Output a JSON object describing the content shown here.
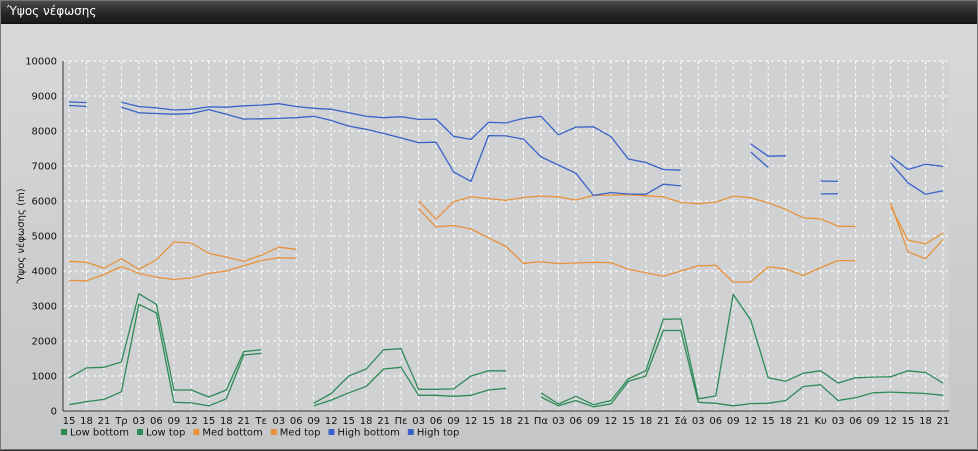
{
  "window": {
    "title": "Ύψος νέφωσης"
  },
  "chart_data": {
    "type": "line",
    "title": "",
    "ylabel": "Ύψος νέφωσης (m)",
    "xlabel": "",
    "ylim": [
      0,
      10000
    ],
    "yticks": [
      0,
      1000,
      2000,
      3000,
      4000,
      5000,
      6000,
      7000,
      8000,
      9000,
      10000
    ],
    "grid": true,
    "legend_position": "bottom-left",
    "categories": [
      "15",
      "18",
      "21",
      "Τρ",
      "03",
      "06",
      "09",
      "12",
      "15",
      "18",
      "21",
      "Τε",
      "03",
      "06",
      "09",
      "12",
      "15",
      "18",
      "21",
      "Πε",
      "03",
      "06",
      "09",
      "12",
      "15",
      "18",
      "21",
      "Πα",
      "03",
      "06",
      "09",
      "12",
      "15",
      "18",
      "21",
      "Σά",
      "03",
      "06",
      "09",
      "12",
      "15",
      "18",
      "21",
      "Κυ",
      "03",
      "06",
      "09",
      "12",
      "15",
      "18",
      "21"
    ],
    "series": [
      {
        "name": "Low bottom",
        "color": "#2e8b57",
        "values": [
          180,
          270,
          330,
          550,
          3050,
          2800,
          250,
          230,
          150,
          350,
          1600,
          1650,
          null,
          null,
          150,
          310,
          520,
          700,
          1200,
          1250,
          450,
          450,
          420,
          450,
          600,
          650,
          null,
          400,
          150,
          300,
          120,
          200,
          850,
          1000,
          2300,
          2300,
          250,
          220,
          150,
          210,
          220,
          300,
          700,
          750,
          300,
          380,
          520,
          540,
          520,
          500,
          450
        ]
      },
      {
        "name": "Low top",
        "color": "#2e8b57",
        "values": [
          950,
          1230,
          1250,
          1400,
          3350,
          3050,
          600,
          600,
          400,
          600,
          1700,
          1750,
          null,
          null,
          220,
          500,
          1000,
          1200,
          1750,
          1780,
          620,
          620,
          630,
          1000,
          1150,
          1150,
          null,
          520,
          200,
          420,
          180,
          300,
          920,
          1150,
          2620,
          2630,
          350,
          430,
          3330,
          2600,
          950,
          850,
          1080,
          1150,
          800,
          950,
          970,
          980,
          1150,
          1100,
          800
        ]
      },
      {
        "name": "Med bottom",
        "color": "#e8923a",
        "values": [
          3730,
          3720,
          3900,
          4130,
          3930,
          3820,
          3760,
          3800,
          3930,
          4000,
          4150,
          4300,
          4380,
          4360,
          null,
          null,
          null,
          null,
          null,
          null,
          5780,
          5260,
          5300,
          5200,
          4950,
          4700,
          4220,
          4270,
          4210,
          4230,
          4250,
          4240,
          4050,
          3950,
          3850,
          4000,
          4150,
          4160,
          3680,
          3690,
          4120,
          4060,
          3870,
          4100,
          4300,
          4290,
          null,
          5950,
          4550,
          4350,
          4900
        ]
      },
      {
        "name": "Med top",
        "color": "#e8923a",
        "values": [
          4280,
          4250,
          4080,
          4350,
          4050,
          4320,
          4830,
          4800,
          4500,
          4400,
          4280,
          4450,
          4680,
          4620,
          null,
          null,
          null,
          null,
          null,
          null,
          6000,
          5480,
          5980,
          6120,
          6070,
          6020,
          6100,
          6140,
          6120,
          6030,
          6160,
          6170,
          6180,
          6150,
          6120,
          5960,
          5920,
          5970,
          6140,
          6090,
          5950,
          5760,
          5520,
          5490,
          5280,
          5270,
          null,
          5850,
          4880,
          4780,
          5080
        ]
      },
      {
        "name": "High bottom",
        "color": "#3a62c8",
        "values": [
          8730,
          8700,
          null,
          8680,
          8520,
          8500,
          8480,
          8500,
          8610,
          8480,
          8340,
          8350,
          8360,
          8380,
          8420,
          8300,
          8140,
          8050,
          7930,
          7800,
          7670,
          7680,
          6830,
          6560,
          7870,
          7860,
          7770,
          7260,
          7030,
          6790,
          6160,
          6240,
          6200,
          6190,
          6480,
          6430,
          null,
          null,
          null,
          7400,
          6960,
          null,
          null,
          6200,
          6210,
          null,
          null,
          7090,
          6520,
          6190,
          6290
        ]
      },
      {
        "name": "High top",
        "color": "#3a62c8",
        "values": [
          8830,
          8810,
          null,
          8820,
          8700,
          8660,
          8600,
          8620,
          8690,
          8680,
          8720,
          8740,
          8780,
          8700,
          8650,
          8620,
          8520,
          8420,
          8380,
          8410,
          8330,
          8340,
          7850,
          7760,
          8250,
          8230,
          8360,
          8420,
          7890,
          8110,
          8120,
          7840,
          7200,
          7100,
          6900,
          6880,
          null,
          null,
          null,
          7630,
          7280,
          7290,
          null,
          6570,
          6560,
          null,
          null,
          7280,
          6900,
          7050,
          6990
        ]
      }
    ]
  }
}
